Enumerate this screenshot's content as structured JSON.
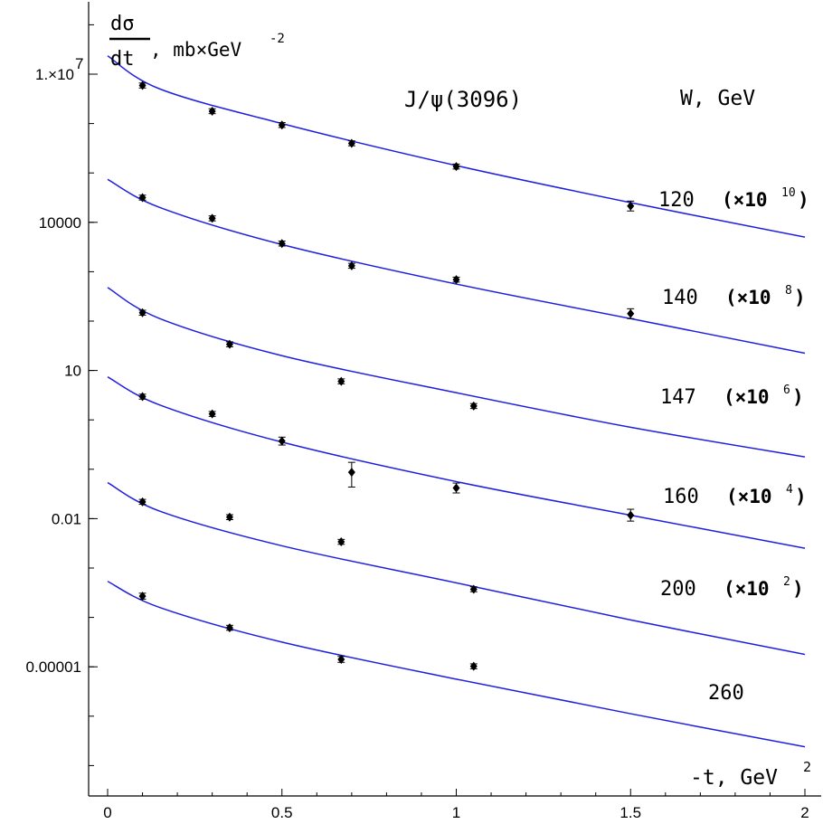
{
  "chart_data": {
    "type": "scatter",
    "title": "J/ψ(3096)",
    "ylabel": "dσ/dt, mb×GeV⁻²",
    "ylabel_parts": {
      "numerator": "dσ",
      "denominator": "dt",
      "unit": ", mb×GeV",
      "unit_exp": "-2"
    },
    "xlabel": "-t, GeV²",
    "xlabel_parts": {
      "text": "-t, GeV",
      "exp": "2"
    },
    "legend_header": "W, GeV",
    "y_scale": "log",
    "xlim": [
      0,
      2
    ],
    "ylim_log10": [
      -8.1,
      8.4
    ],
    "x_ticks": [
      {
        "value": 0,
        "label": "0"
      },
      {
        "value": 0.5,
        "label": "0.5"
      },
      {
        "value": 1,
        "label": "1"
      },
      {
        "value": 1.5,
        "label": "1.5"
      },
      {
        "value": 2,
        "label": "2"
      }
    ],
    "y_ticks": [
      {
        "log10": 7,
        "label": "1.×10",
        "label_exp": "7"
      },
      {
        "log10": 4,
        "label": "10000"
      },
      {
        "log10": 1,
        "label": "10"
      },
      {
        "log10": -2,
        "label": "0.01"
      },
      {
        "log10": -5,
        "label": "0.00001"
      }
    ],
    "line_color": "#1f1fe0",
    "series": [
      {
        "name": "120",
        "scale_label": "(×10",
        "scale_exp": "10",
        "points": [
          {
            "x": 0.1,
            "log10y": 6.77,
            "err_lo": 0.05,
            "err_hi": 0.05
          },
          {
            "x": 0.3,
            "log10y": 6.25,
            "err_lo": 0.05,
            "err_hi": 0.05
          },
          {
            "x": 0.5,
            "log10y": 5.97,
            "err_lo": 0.05,
            "err_hi": 0.05
          },
          {
            "x": 0.7,
            "log10y": 5.6,
            "err_lo": 0.05,
            "err_hi": 0.05
          },
          {
            "x": 1.0,
            "log10y": 5.13,
            "err_lo": 0.05,
            "err_hi": 0.05
          },
          {
            "x": 1.5,
            "log10y": 4.33,
            "err_lo": 0.1,
            "err_hi": 0.1
          }
        ],
        "curve": [
          {
            "x": 0,
            "log10y": 7.37
          },
          {
            "x": 0.15,
            "log10y": 6.7
          },
          {
            "x": 0.5,
            "log10y": 6.0
          },
          {
            "x": 1.0,
            "log10y": 5.15
          },
          {
            "x": 1.5,
            "log10y": 4.4
          },
          {
            "x": 2.0,
            "log10y": 3.7
          }
        ]
      },
      {
        "name": "140",
        "scale_label": "(×10",
        "scale_exp": "8",
        "points": [
          {
            "x": 0.1,
            "log10y": 4.5,
            "err_lo": 0.05,
            "err_hi": 0.05
          },
          {
            "x": 0.3,
            "log10y": 4.08,
            "err_lo": 0.05,
            "err_hi": 0.05
          },
          {
            "x": 0.5,
            "log10y": 3.57,
            "err_lo": 0.05,
            "err_hi": 0.05
          },
          {
            "x": 0.7,
            "log10y": 3.12,
            "err_lo": 0.05,
            "err_hi": 0.05
          },
          {
            "x": 1.0,
            "log10y": 2.84,
            "err_lo": 0.05,
            "err_hi": 0.05
          },
          {
            "x": 1.5,
            "log10y": 2.15,
            "err_lo": 0.1,
            "err_hi": 0.1
          }
        ],
        "curve": [
          {
            "x": 0,
            "log10y": 4.87
          },
          {
            "x": 0.15,
            "log10y": 4.3
          },
          {
            "x": 0.5,
            "log10y": 3.55
          },
          {
            "x": 1.0,
            "log10y": 2.75
          },
          {
            "x": 1.5,
            "log10y": 2.05
          },
          {
            "x": 2.0,
            "log10y": 1.35
          }
        ]
      },
      {
        "name": "147",
        "scale_label": "(×10",
        "scale_exp": "6",
        "points": [
          {
            "x": 0.1,
            "log10y": 2.17,
            "err_lo": 0.05,
            "err_hi": 0.05
          },
          {
            "x": 0.35,
            "log10y": 1.53,
            "err_lo": 0.05,
            "err_hi": 0.05
          },
          {
            "x": 0.67,
            "log10y": 0.78,
            "err_lo": 0.05,
            "err_hi": 0.05
          },
          {
            "x": 1.05,
            "log10y": 0.28,
            "err_lo": 0.05,
            "err_hi": 0.05
          }
        ],
        "curve": [
          {
            "x": 0,
            "log10y": 2.68
          },
          {
            "x": 0.15,
            "log10y": 2.05
          },
          {
            "x": 0.5,
            "log10y": 1.3
          },
          {
            "x": 1.0,
            "log10y": 0.55
          },
          {
            "x": 1.5,
            "log10y": -0.15
          },
          {
            "x": 2.0,
            "log10y": -0.75
          }
        ]
      },
      {
        "name": "160",
        "scale_label": "(×10",
        "scale_exp": "4",
        "points": [
          {
            "x": 0.1,
            "log10y": 0.47,
            "err_lo": 0.05,
            "err_hi": 0.05
          },
          {
            "x": 0.3,
            "log10y": 0.12,
            "err_lo": 0.05,
            "err_hi": 0.05
          },
          {
            "x": 0.5,
            "log10y": -0.43,
            "err_lo": 0.08,
            "err_hi": 0.08
          },
          {
            "x": 0.7,
            "log10y": -1.06,
            "err_lo": 0.3,
            "err_hi": 0.2
          },
          {
            "x": 1.0,
            "log10y": -1.38,
            "err_lo": 0.1,
            "err_hi": 0.1
          },
          {
            "x": 1.5,
            "log10y": -1.93,
            "err_lo": 0.12,
            "err_hi": 0.12
          }
        ],
        "curve": [
          {
            "x": 0,
            "log10y": 0.87
          },
          {
            "x": 0.15,
            "log10y": 0.3
          },
          {
            "x": 0.5,
            "log10y": -0.45
          },
          {
            "x": 1.0,
            "log10y": -1.25
          },
          {
            "x": 1.5,
            "log10y": -1.93
          },
          {
            "x": 2.0,
            "log10y": -2.6
          }
        ]
      },
      {
        "name": "200",
        "scale_label": "(×10",
        "scale_exp": "2",
        "points": [
          {
            "x": 0.1,
            "log10y": -1.66,
            "err_lo": 0.05,
            "err_hi": 0.05
          },
          {
            "x": 0.35,
            "log10y": -1.97,
            "err_lo": 0.05,
            "err_hi": 0.05
          },
          {
            "x": 0.67,
            "log10y": -2.47,
            "err_lo": 0.05,
            "err_hi": 0.05
          },
          {
            "x": 1.05,
            "log10y": -3.43,
            "err_lo": 0.05,
            "err_hi": 0.05
          }
        ],
        "curve": [
          {
            "x": 0,
            "log10y": -1.27
          },
          {
            "x": 0.15,
            "log10y": -1.85
          },
          {
            "x": 0.5,
            "log10y": -2.55
          },
          {
            "x": 1.0,
            "log10y": -3.3
          },
          {
            "x": 1.5,
            "log10y": -4.05
          },
          {
            "x": 2.0,
            "log10y": -4.75
          }
        ]
      },
      {
        "name": "260",
        "scale_label": "",
        "scale_exp": "",
        "points": [
          {
            "x": 0.1,
            "log10y": -3.57,
            "err_lo": 0.06,
            "err_hi": 0.06
          },
          {
            "x": 0.35,
            "log10y": -4.21,
            "err_lo": 0.05,
            "err_hi": 0.05
          },
          {
            "x": 0.67,
            "log10y": -4.85,
            "err_lo": 0.06,
            "err_hi": 0.06
          },
          {
            "x": 1.05,
            "log10y": -4.99,
            "err_lo": 0.05,
            "err_hi": 0.05
          }
        ],
        "curve": [
          {
            "x": 0,
            "log10y": -3.27
          },
          {
            "x": 0.15,
            "log10y": -3.8
          },
          {
            "x": 0.5,
            "log10y": -4.5
          },
          {
            "x": 1.0,
            "log10y": -5.25
          },
          {
            "x": 1.5,
            "log10y": -5.95
          },
          {
            "x": 2.0,
            "log10y": -6.62
          }
        ]
      }
    ]
  }
}
